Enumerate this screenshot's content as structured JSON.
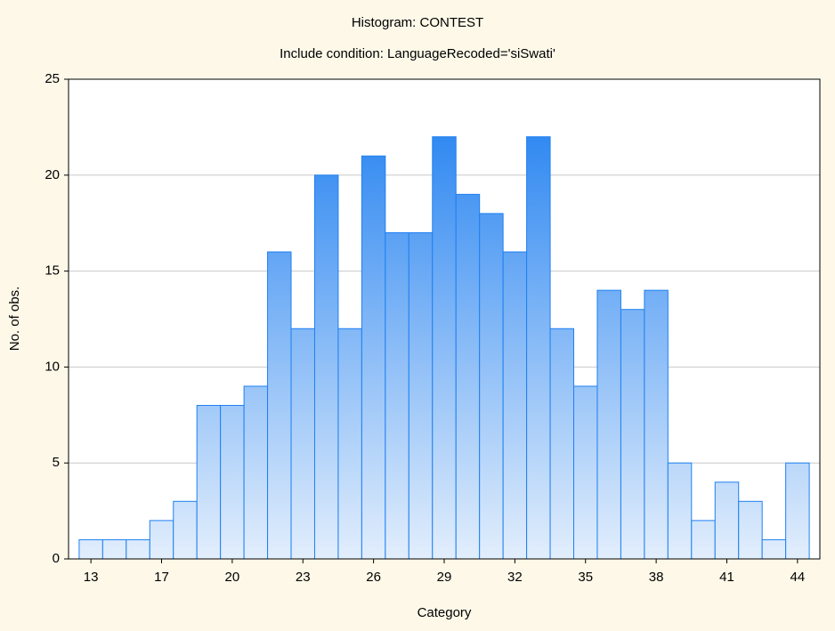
{
  "chart_data": {
    "type": "histogram",
    "title": "Histogram: CONTEST",
    "subtitle": "Include condition: LanguageRecoded='siSwati'",
    "xlabel": "Category",
    "ylabel": "No. of obs.",
    "bins": [
      12.5,
      13.5,
      14.5,
      15.5,
      16.5,
      17.5,
      18.5,
      19.5,
      20.5,
      21.5,
      22.5,
      23.5,
      24.5,
      25.5,
      26.5,
      27.5,
      28.5,
      29.5,
      30.5,
      31.5,
      32.5,
      33.5,
      34.5,
      35.5,
      36.5,
      37.5,
      38.5,
      39.5,
      40.5,
      41.5,
      42.5,
      43.5
    ],
    "values": [
      1,
      1,
      1,
      2,
      3,
      8,
      8,
      9,
      16,
      12,
      20,
      12,
      21,
      17,
      17,
      22,
      19,
      18,
      16,
      22,
      12,
      9,
      14,
      13,
      14,
      5,
      2,
      4,
      3,
      1,
      5
    ],
    "color": "#1f80f2",
    "xlim": [
      12.05,
      43.95
    ],
    "xticks": [
      13,
      {
        "value": 16,
        "label": "17"
      },
      {
        "value": 19,
        "label": "20"
      },
      {
        "value": 22,
        "label": "23"
      },
      {
        "value": 25,
        "label": "26"
      },
      {
        "value": 28,
        "label": "29"
      },
      {
        "value": 31,
        "label": "32"
      },
      {
        "value": 34,
        "label": "35"
      },
      {
        "value": 37,
        "label": "38"
      },
      {
        "value": 40,
        "label": "41"
      },
      {
        "value": 43,
        "label": "44"
      }
    ],
    "ylim": [
      0,
      25
    ],
    "yticks": [
      0,
      5,
      10,
      15,
      20,
      25
    ],
    "grid": true
  }
}
